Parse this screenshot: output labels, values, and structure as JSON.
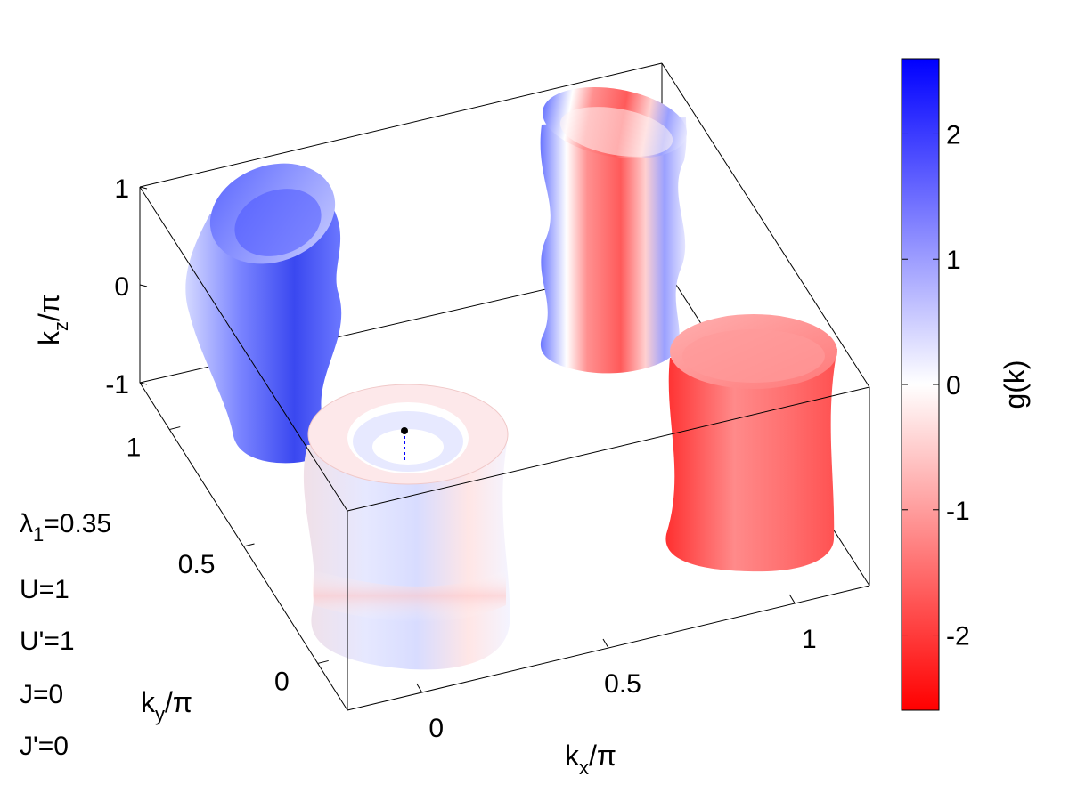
{
  "chart_data": {
    "type": "3d-surface",
    "title": "",
    "axes": {
      "x": {
        "label": "k",
        "sub": "x",
        "suffix": "/π",
        "range": [
          -0.2,
          1.2
        ],
        "ticks": [
          0,
          0.5,
          1
        ],
        "tick_labels": [
          "0",
          "0.5",
          "1"
        ]
      },
      "y": {
        "label": "k",
        "sub": "y",
        "suffix": "/π",
        "range": [
          -0.2,
          1.2
        ],
        "ticks": [
          0,
          0.5,
          1
        ],
        "tick_labels": [
          "0",
          "0.5",
          "1"
        ]
      },
      "z": {
        "label": "k",
        "sub": "z",
        "suffix": "/π",
        "range": [
          -1,
          1
        ],
        "ticks": [
          -1,
          0,
          1
        ],
        "tick_labels": [
          "-1",
          "0",
          "1"
        ]
      }
    },
    "surfaces": [
      {
        "center": [
          0,
          0
        ],
        "shape": "nested double cylinder",
        "g_range": [
          -0.3,
          0.3
        ],
        "dominant": "near zero"
      },
      {
        "center": [
          1,
          0
        ],
        "shape": "cylinder",
        "g_range": [
          -2.0,
          -0.8
        ],
        "dominant": "negative"
      },
      {
        "center": [
          0,
          1
        ],
        "shape": "cylinder",
        "g_range": [
          0.8,
          2.0
        ],
        "dominant": "positive"
      },
      {
        "center": [
          1,
          1
        ],
        "shape": "corrugated cylinder",
        "g_range": [
          -1.2,
          1.5
        ],
        "dominant": "mixed"
      }
    ],
    "colorbar": {
      "label": "g(k)",
      "range": [
        -2.6,
        2.6
      ],
      "ticks": [
        2,
        1,
        0,
        -1,
        -2
      ],
      "tick_labels": [
        "2",
        "1",
        "0",
        "-1",
        "-2"
      ],
      "colors": {
        "max": "#0000ff",
        "mid": "#ffffff",
        "min": "#ff0000"
      }
    },
    "annotations": [
      {
        "text": "λ",
        "sub": "1",
        "value": "=0.35"
      },
      {
        "text": "U=1"
      },
      {
        "text": "U'=1"
      },
      {
        "text": "J=0"
      },
      {
        "text": "J'=0"
      }
    ]
  }
}
